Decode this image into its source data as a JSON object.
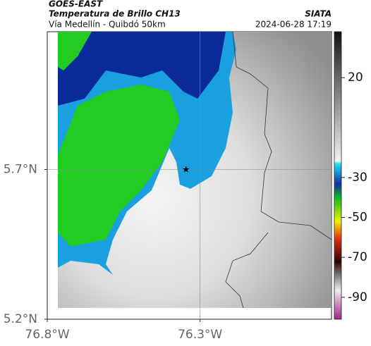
{
  "header": {
    "title": "GOES-EAST",
    "subtitle": "Temperatura de Brillo CH13",
    "location": "Vía Medellín - Quibdó 50km",
    "source": "SIATA",
    "timestamp": "2024-06-28 17:19"
  },
  "map": {
    "lon_lim": [
      -76.8,
      -75.87
    ],
    "lat_lim": [
      5.2,
      6.16
    ],
    "lon_ticks": [
      {
        "value": -76.8,
        "label": "76.8°W"
      },
      {
        "value": -76.3,
        "label": "76.3°W"
      }
    ],
    "lat_ticks": [
      {
        "value": 5.2,
        "label": "5.2°N"
      },
      {
        "value": 5.7,
        "label": "5.7°N"
      }
    ],
    "grid": true,
    "marker": {
      "lon": -76.346,
      "lat": 5.7
    }
  },
  "colorbar": {
    "lim": [
      -101,
      43
    ],
    "ticks": [
      20,
      -30,
      -50,
      -70,
      -90
    ]
  }
}
